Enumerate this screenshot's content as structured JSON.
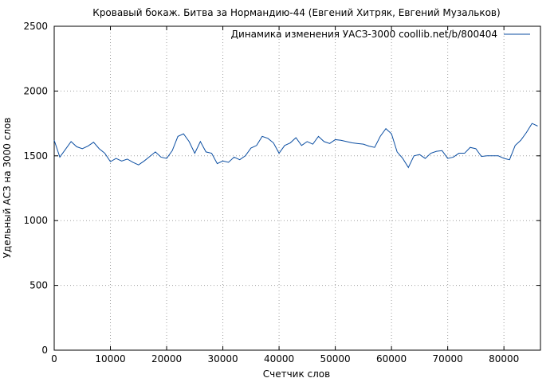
{
  "chart_data": {
    "type": "line",
    "title": "Кровавый бокаж. Битва за Нормандию-44 (Евгений Хитряк, Евгений Музальков)",
    "xlabel": "Счетчик слов",
    "ylabel": "Удельный АСЗ на 3000 слов",
    "xlim": [
      0,
      86500
    ],
    "ylim": [
      0,
      2500
    ],
    "x_ticks": [
      0,
      10000,
      20000,
      30000,
      40000,
      50000,
      60000,
      70000,
      80000
    ],
    "y_ticks": [
      0,
      500,
      1000,
      1500,
      2000,
      2500
    ],
    "grid": true,
    "legend_position": "top-right",
    "colors": {
      "series": "#0b4ea2",
      "grid": "#a0a0a0",
      "axis": "#000000"
    },
    "series": [
      {
        "name": "Динамика изменения УАСЗ-3000 coollib.net/b/800404",
        "x": [
          0,
          1000,
          2000,
          3000,
          4000,
          5000,
          6000,
          7000,
          8000,
          9000,
          10000,
          11000,
          12000,
          13000,
          14000,
          15000,
          16000,
          17000,
          18000,
          19000,
          20000,
          21000,
          22000,
          23000,
          24000,
          25000,
          26000,
          27000,
          28000,
          29000,
          30000,
          31000,
          32000,
          33000,
          34000,
          35000,
          36000,
          37000,
          38000,
          39000,
          40000,
          41000,
          42000,
          43000,
          44000,
          45000,
          46000,
          47000,
          48000,
          49000,
          50000,
          51000,
          52000,
          53000,
          54000,
          55000,
          56000,
          57000,
          58000,
          59000,
          60000,
          61000,
          62000,
          63000,
          64000,
          65000,
          66000,
          67000,
          68000,
          69000,
          70000,
          71000,
          72000,
          73000,
          74000,
          75000,
          76000,
          77000,
          78000,
          79000,
          80000,
          81000,
          82000,
          83000,
          84000,
          85000,
          86000
        ],
        "values": [
          1620,
          1490,
          1550,
          1610,
          1570,
          1555,
          1575,
          1605,
          1555,
          1520,
          1455,
          1480,
          1460,
          1475,
          1450,
          1430,
          1460,
          1495,
          1530,
          1490,
          1480,
          1540,
          1650,
          1670,
          1610,
          1520,
          1610,
          1530,
          1520,
          1440,
          1460,
          1450,
          1490,
          1470,
          1500,
          1560,
          1580,
          1650,
          1635,
          1600,
          1520,
          1580,
          1600,
          1640,
          1580,
          1610,
          1590,
          1650,
          1610,
          1595,
          1625,
          1620,
          1610,
          1600,
          1595,
          1590,
          1575,
          1565,
          1650,
          1710,
          1670,
          1530,
          1480,
          1410,
          1500,
          1510,
          1480,
          1520,
          1535,
          1540,
          1480,
          1490,
          1520,
          1520,
          1565,
          1555,
          1495,
          1500,
          1500,
          1500,
          1480,
          1470,
          1580,
          1620,
          1680,
          1750,
          1730
        ]
      }
    ]
  }
}
